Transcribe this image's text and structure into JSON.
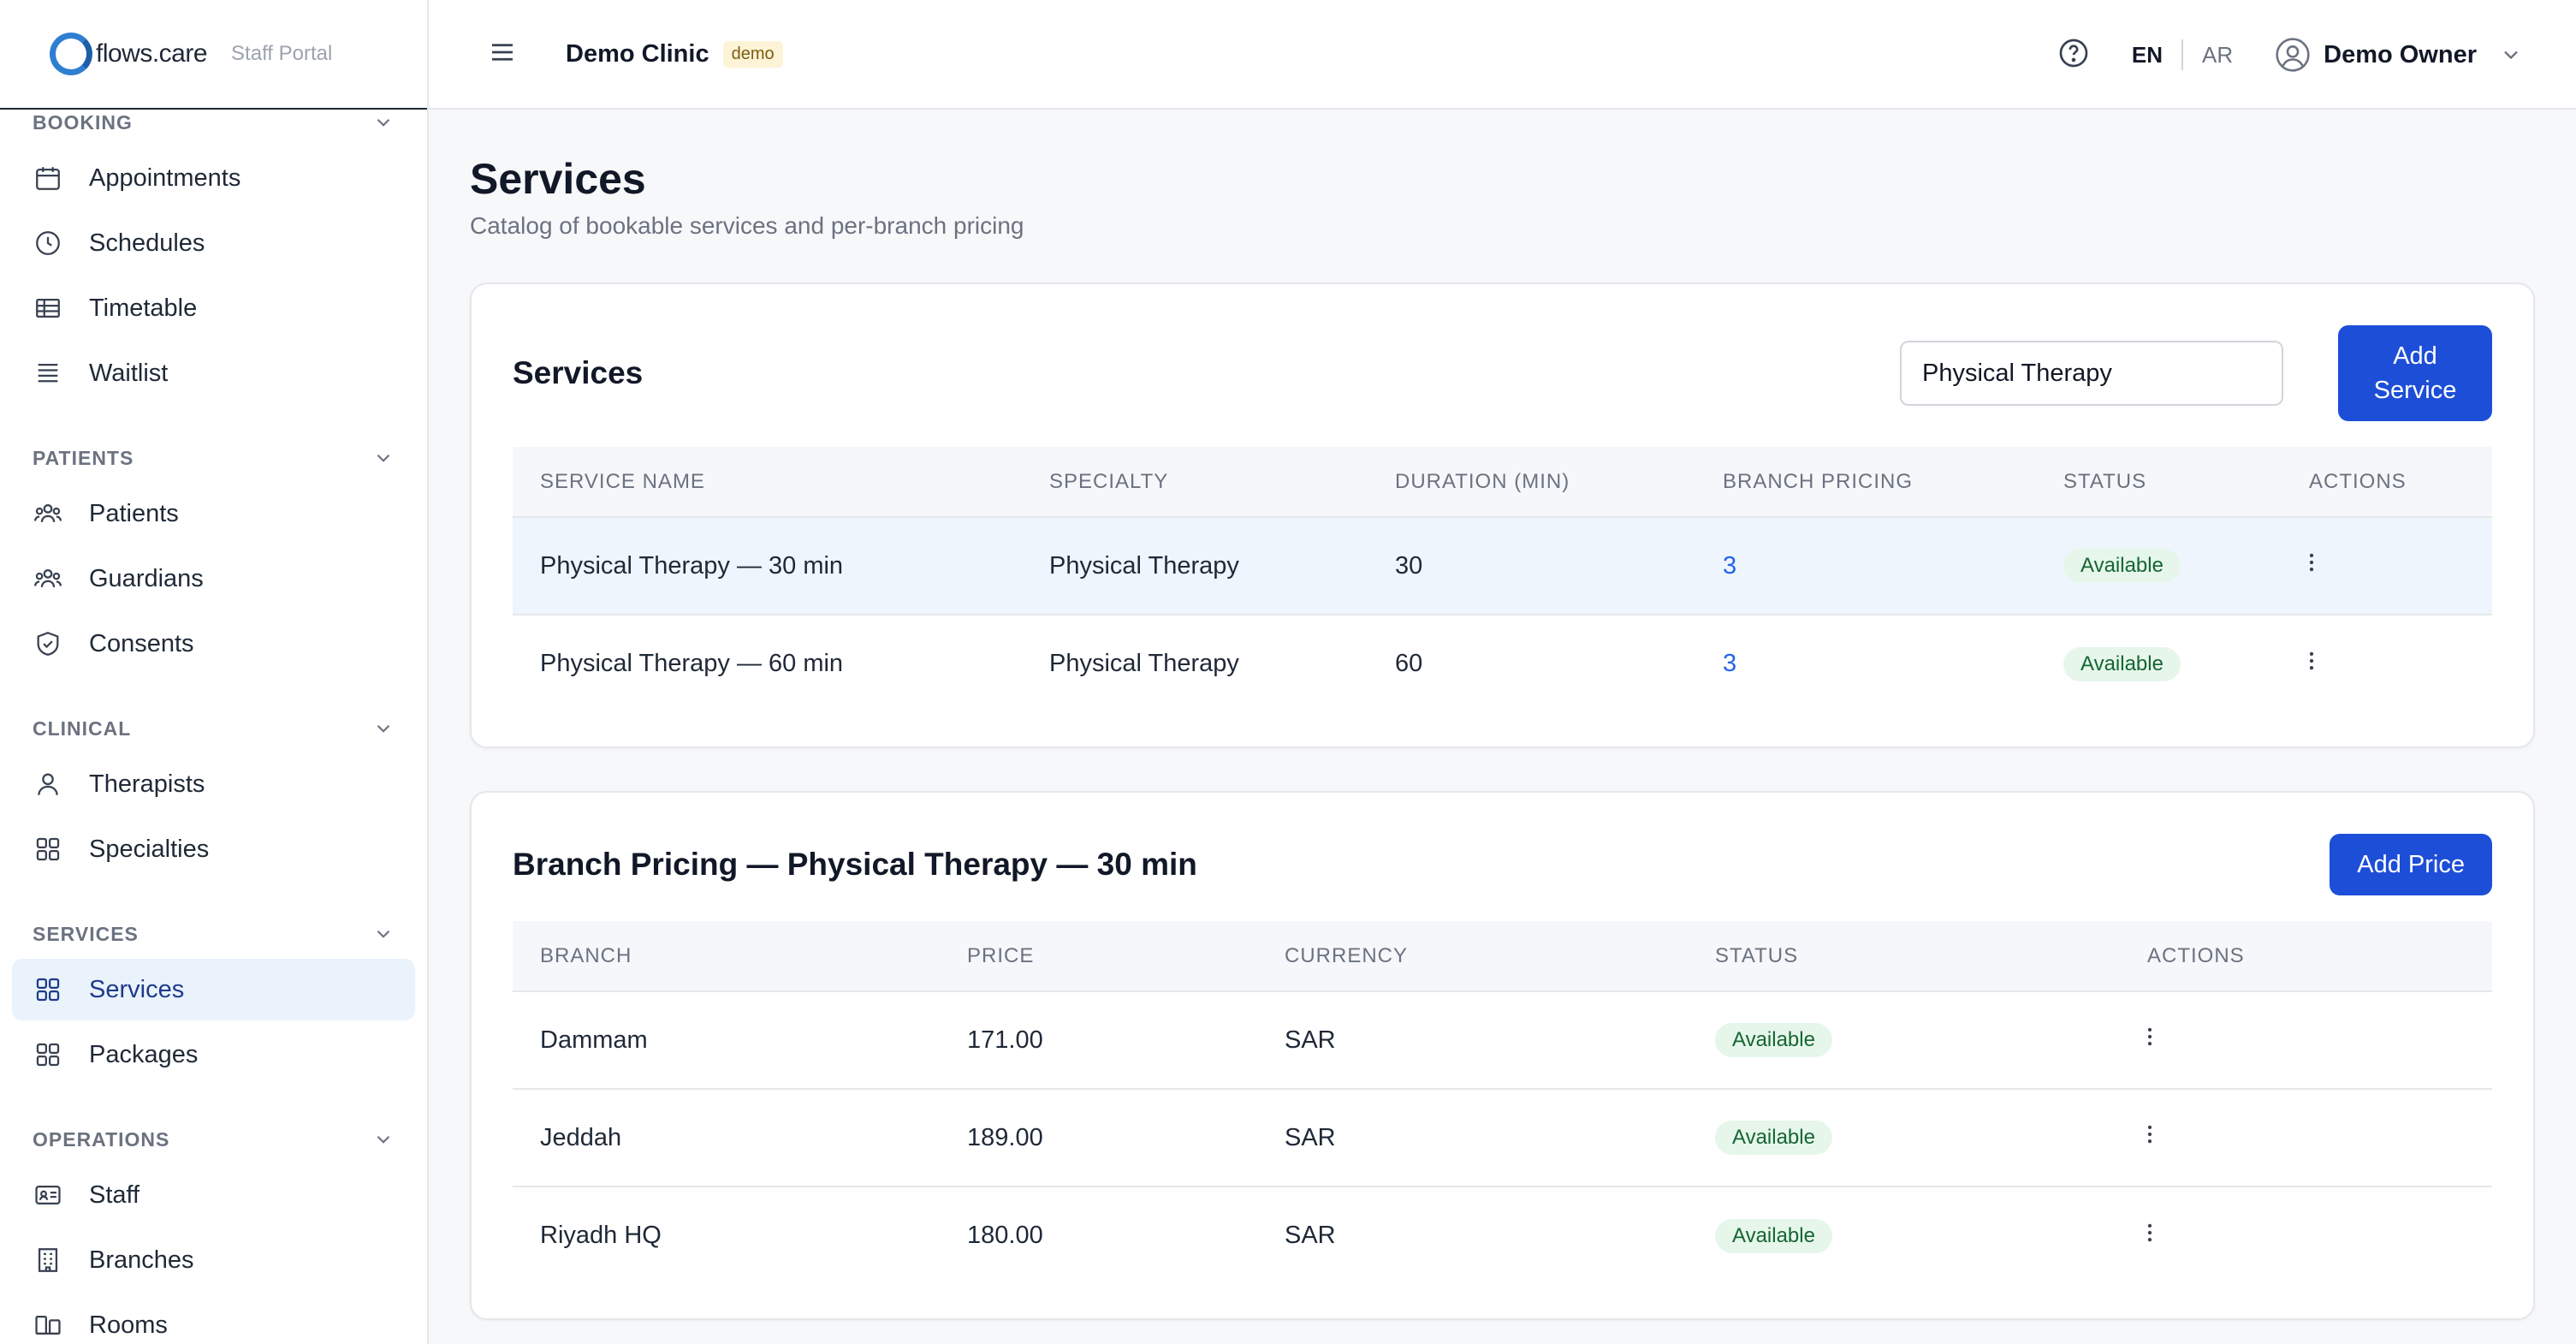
{
  "brand": {
    "name": "flows.care",
    "subtitle": "Staff Portal"
  },
  "sidebar": {
    "sections": [
      {
        "label": "BOOKING",
        "items": [
          "Appointments",
          "Schedules",
          "Timetable",
          "Waitlist"
        ]
      },
      {
        "label": "PATIENTS",
        "items": [
          "Patients",
          "Guardians",
          "Consents"
        ]
      },
      {
        "label": "CLINICAL",
        "items": [
          "Therapists",
          "Specialties"
        ]
      },
      {
        "label": "SERVICES",
        "items": [
          "Services",
          "Packages"
        ]
      },
      {
        "label": "OPERATIONS",
        "items": [
          "Staff",
          "Branches",
          "Rooms"
        ]
      }
    ],
    "active_item": "Services"
  },
  "topbar": {
    "clinic": "Demo Clinic",
    "badge": "demo",
    "lang_en": "EN",
    "lang_ar": "AR",
    "user": "Demo Owner"
  },
  "page": {
    "title": "Services",
    "subtitle": "Catalog of bookable services and per-branch pricing"
  },
  "services_card": {
    "title": "Services",
    "search_value": "Physical Therapy",
    "add_button": "Add Service",
    "columns": [
      "SERVICE NAME",
      "SPECIALTY",
      "DURATION (MIN)",
      "BRANCH PRICING",
      "STATUS",
      "ACTIONS"
    ],
    "rows": [
      {
        "name": "Physical Therapy — 30 min",
        "specialty": "Physical Therapy",
        "duration": "30",
        "pricing": "3",
        "status": "Available"
      },
      {
        "name": "Physical Therapy — 60 min",
        "specialty": "Physical Therapy",
        "duration": "60",
        "pricing": "3",
        "status": "Available"
      }
    ]
  },
  "pricing_card": {
    "title": "Branch Pricing — Physical Therapy — 30 min",
    "add_button": "Add Price",
    "columns": [
      "BRANCH",
      "PRICE",
      "CURRENCY",
      "STATUS",
      "ACTIONS"
    ],
    "rows": [
      {
        "branch": "Dammam",
        "price": "171.00",
        "currency": "SAR",
        "status": "Available"
      },
      {
        "branch": "Jeddah",
        "price": "189.00",
        "currency": "SAR",
        "status": "Available"
      },
      {
        "branch": "Riyadh HQ",
        "price": "180.00",
        "currency": "SAR",
        "status": "Available"
      }
    ]
  },
  "colors": {
    "primary": "#1d4ed8",
    "active_bg": "#eaf3fc",
    "pill_bg": "#e6f6ea",
    "pill_text": "#166534"
  }
}
